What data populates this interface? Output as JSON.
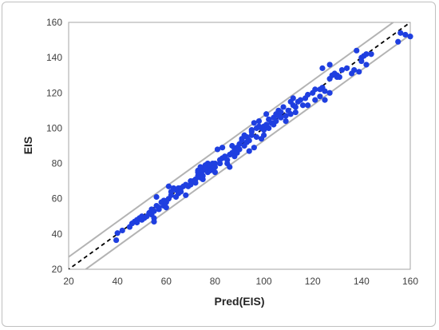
{
  "chart_data": {
    "type": "scatter",
    "xlabel": "Pred(EIS)",
    "ylabel": "EIS",
    "xlim": [
      20,
      160
    ],
    "ylim": [
      20,
      160
    ],
    "xticks": [
      "20",
      "40",
      "60",
      "80",
      "100",
      "120",
      "140",
      "160"
    ],
    "yticks": [
      "20",
      "40",
      "60",
      "80",
      "100",
      "120",
      "140",
      "160"
    ],
    "grid": false,
    "legend": "none",
    "colors": {
      "points": "#1f3fe0",
      "band": "#b3b3b3",
      "identity": "#000000"
    },
    "reference_lines": {
      "identity": {
        "slope": 1,
        "intercept": 0,
        "style": "dashed"
      },
      "upper_band": {
        "slope": 1,
        "intercept": 7,
        "style": "solid"
      },
      "lower_band": {
        "slope": 1,
        "intercept": -7,
        "style": "solid"
      }
    },
    "points": [
      [
        39.5,
        36.5
      ],
      [
        40,
        40.5
      ],
      [
        42,
        42
      ],
      [
        45,
        44
      ],
      [
        46,
        46
      ],
      [
        47,
        47
      ],
      [
        48,
        48
      ],
      [
        48,
        46.5
      ],
      [
        49,
        49
      ],
      [
        50,
        48
      ],
      [
        50,
        50
      ],
      [
        51,
        49
      ],
      [
        52,
        50
      ],
      [
        53,
        52
      ],
      [
        54,
        54
      ],
      [
        54,
        51
      ],
      [
        55,
        47
      ],
      [
        55,
        53
      ],
      [
        55,
        49
      ],
      [
        56,
        56
      ],
      [
        56,
        61
      ],
      [
        57,
        54
      ],
      [
        57,
        55
      ],
      [
        58,
        58
      ],
      [
        59,
        56
      ],
      [
        59,
        59
      ],
      [
        60,
        58
      ],
      [
        60,
        55
      ],
      [
        61,
        67
      ],
      [
        61,
        60
      ],
      [
        62,
        62
      ],
      [
        62,
        64
      ],
      [
        63,
        66
      ],
      [
        64,
        65
      ],
      [
        64,
        61
      ],
      [
        65,
        66
      ],
      [
        65,
        63
      ],
      [
        66,
        66
      ],
      [
        66,
        64
      ],
      [
        67,
        67
      ],
      [
        68,
        68
      ],
      [
        68,
        62
      ],
      [
        69,
        67
      ],
      [
        70,
        70
      ],
      [
        70,
        68
      ],
      [
        71,
        70
      ],
      [
        72,
        71
      ],
      [
        72,
        69
      ],
      [
        73,
        73
      ],
      [
        73,
        75
      ],
      [
        73,
        76
      ],
      [
        74,
        78
      ],
      [
        74,
        72
      ],
      [
        74,
        74
      ],
      [
        75,
        73
      ],
      [
        75,
        71
      ],
      [
        75,
        76
      ],
      [
        76,
        79
      ],
      [
        76,
        77
      ],
      [
        77,
        75
      ],
      [
        77,
        80
      ],
      [
        78,
        78
      ],
      [
        78,
        76
      ],
      [
        79,
        80
      ],
      [
        79,
        77
      ],
      [
        80,
        75
      ],
      [
        80,
        80
      ],
      [
        80,
        78
      ],
      [
        81,
        88
      ],
      [
        82,
        82
      ],
      [
        82,
        80
      ],
      [
        83,
        83
      ],
      [
        83,
        89
      ],
      [
        84,
        84
      ],
      [
        85,
        82
      ],
      [
        85,
        80
      ],
      [
        86,
        85
      ],
      [
        86,
        78
      ],
      [
        87,
        90
      ],
      [
        87,
        86
      ],
      [
        88,
        88
      ],
      [
        88,
        84
      ],
      [
        89,
        89
      ],
      [
        89,
        86
      ],
      [
        90,
        91
      ],
      [
        90,
        88
      ],
      [
        91,
        93
      ],
      [
        91,
        94
      ],
      [
        92,
        96
      ],
      [
        92,
        90
      ],
      [
        93,
        92
      ],
      [
        93,
        95
      ],
      [
        94,
        93
      ],
      [
        94,
        87
      ],
      [
        95,
        96
      ],
      [
        95,
        99
      ],
      [
        95,
        98
      ],
      [
        96,
        89
      ],
      [
        96,
        103
      ],
      [
        97,
        95
      ],
      [
        97,
        100
      ],
      [
        98,
        104
      ],
      [
        98,
        101
      ],
      [
        99,
        94
      ],
      [
        99,
        100
      ],
      [
        100,
        101
      ],
      [
        100,
        99
      ],
      [
        100,
        96
      ],
      [
        101,
        108
      ],
      [
        101,
        102
      ],
      [
        102,
        100
      ],
      [
        102,
        105
      ],
      [
        103,
        103
      ],
      [
        104,
        106
      ],
      [
        104,
        102
      ],
      [
        105,
        104
      ],
      [
        105,
        108
      ],
      [
        106,
        110
      ],
      [
        106,
        107
      ],
      [
        107,
        109
      ],
      [
        107,
        106
      ],
      [
        108,
        112
      ],
      [
        109,
        107
      ],
      [
        109,
        104
      ],
      [
        110,
        110
      ],
      [
        111,
        115
      ],
      [
        111,
        108
      ],
      [
        112,
        117
      ],
      [
        112,
        113
      ],
      [
        113,
        109
      ],
      [
        113,
        112
      ],
      [
        114,
        115
      ],
      [
        115,
        116
      ],
      [
        116,
        113
      ],
      [
        117,
        117
      ],
      [
        118,
        119
      ],
      [
        118,
        113
      ],
      [
        120,
        120
      ],
      [
        121,
        116
      ],
      [
        121,
        122
      ],
      [
        123,
        118
      ],
      [
        123,
        122
      ],
      [
        124,
        123
      ],
      [
        124,
        134
      ],
      [
        125,
        116
      ],
      [
        125,
        121
      ],
      [
        127,
        120
      ],
      [
        127,
        128
      ],
      [
        127,
        136
      ],
      [
        128,
        130
      ],
      [
        129,
        131
      ],
      [
        130,
        129
      ],
      [
        130,
        130
      ],
      [
        131,
        129
      ],
      [
        132,
        133
      ],
      [
        134,
        134
      ],
      [
        136,
        131
      ],
      [
        137,
        133
      ],
      [
        138,
        144
      ],
      [
        139,
        132
      ],
      [
        140,
        138
      ],
      [
        140,
        140
      ],
      [
        141,
        141
      ],
      [
        142,
        142
      ],
      [
        142,
        136
      ],
      [
        144,
        142
      ],
      [
        155,
        149
      ],
      [
        156,
        154
      ],
      [
        158,
        153
      ],
      [
        160,
        152
      ]
    ]
  }
}
